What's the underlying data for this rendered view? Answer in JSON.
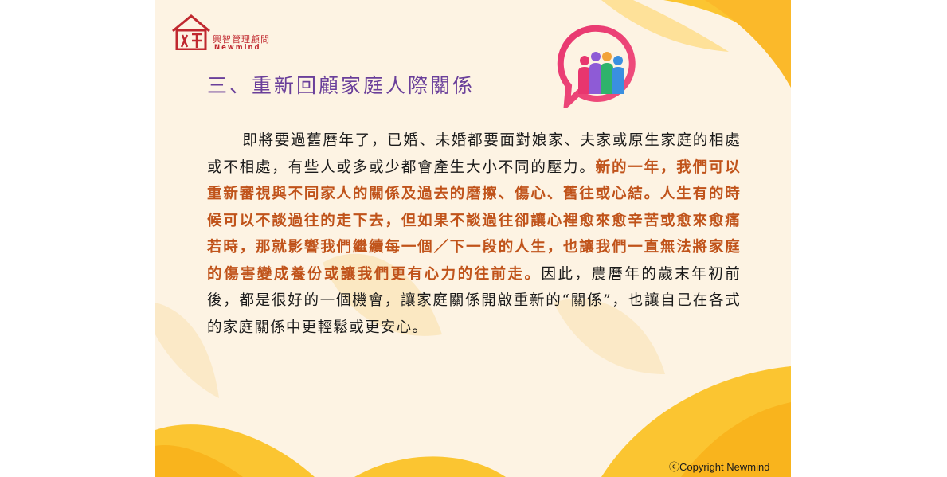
{
  "logo": {
    "name_cn": "興智管理顧問",
    "name_en": "Newmind"
  },
  "title": "三、重新回顧家庭人際關係",
  "body": {
    "part1": "即將要過舊曆年了，已婚、未婚都要面對娘家、夫家或原生家庭的相處或不相處，有些人或多或少都會產生大小不同的壓力。",
    "highlight": "新的一年，我們可以重新審視與不同家人的關係及過去的磨擦、傷心、舊往或心結。人生有的時候可以不談過往的走下去，但如果不談過往卻讓心裡愈來愈辛苦或愈來愈痛若時，那就影響我們繼續每一個／下一段的人生，也讓我們一直無法將家庭的傷害變成養份或讓我們更有心力的往前走。",
    "part2": "因此，農曆年的歲末年初前後，都是很好的一個機會，讓家庭關係開啟重新的“關係”，也讓自己在各式的家庭關係中更輕鬆或更安心。"
  },
  "copyright": "ⓒCopyright Newmind",
  "colors": {
    "background": "#fdf3e3",
    "title": "#6a3f9a",
    "highlight": "#c0531a",
    "logo": "#c0282f",
    "decor_yellow": "#fbc531"
  },
  "icons": {
    "logo_mark": "house-logo-icon",
    "chat": "group-chat-icon"
  }
}
